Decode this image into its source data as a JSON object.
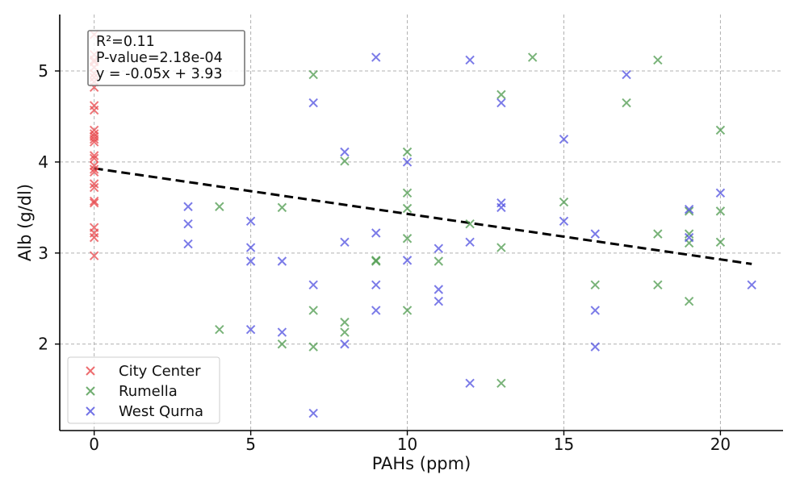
{
  "chart_data": {
    "type": "scatter",
    "xlabel": "PAHs (ppm)",
    "ylabel": "Alb (g/dl)",
    "xlim": [
      -1.1,
      22
    ],
    "ylim": [
      1.05,
      5.62
    ],
    "xticks": [
      0,
      5,
      10,
      15,
      20
    ],
    "yticks": [
      2,
      3,
      4,
      5
    ],
    "grid": true,
    "legend_position": "bottom-left",
    "stats_box": {
      "r2": "R²=0.11",
      "pvalue": "P-value=2.18e-04",
      "equation": "y = -0.05x + 3.93"
    },
    "regression": {
      "slope": -0.05,
      "intercept": 3.93,
      "x_range": [
        0,
        21
      ],
      "style": "dashed",
      "color": "#000000"
    },
    "series": [
      {
        "name": "City Center",
        "color": "#e8474b",
        "points": [
          [
            0,
            5.4
          ],
          [
            0,
            5.18
          ],
          [
            0,
            5.12
          ],
          [
            0,
            5.1
          ],
          [
            0,
            5.04
          ],
          [
            0,
            4.97
          ],
          [
            0,
            4.93
          ],
          [
            0,
            4.88
          ],
          [
            0,
            4.82
          ],
          [
            0,
            4.62
          ],
          [
            0,
            4.57
          ],
          [
            0,
            4.35
          ],
          [
            0,
            4.31
          ],
          [
            0,
            4.28
          ],
          [
            0,
            4.25
          ],
          [
            0,
            4.22
          ],
          [
            0,
            4.07
          ],
          [
            0,
            4.04
          ],
          [
            0,
            3.96
          ],
          [
            0,
            3.92
          ],
          [
            0,
            3.89
          ],
          [
            0,
            3.76
          ],
          [
            0,
            3.72
          ],
          [
            0,
            3.57
          ],
          [
            0,
            3.55
          ],
          [
            0,
            3.28
          ],
          [
            0,
            3.22
          ],
          [
            0,
            3.17
          ],
          [
            0,
            2.97
          ]
        ]
      },
      {
        "name": "Rumella",
        "color": "#4c9a4c",
        "points": [
          [
            4,
            3.51
          ],
          [
            4,
            2.16
          ],
          [
            6,
            3.5
          ],
          [
            6,
            2.0
          ],
          [
            7,
            4.96
          ],
          [
            7,
            2.37
          ],
          [
            7,
            1.97
          ],
          [
            8,
            4.01
          ],
          [
            8,
            2.24
          ],
          [
            8,
            2.13
          ],
          [
            9,
            2.92
          ],
          [
            9,
            2.91
          ],
          [
            10,
            4.11
          ],
          [
            10,
            3.66
          ],
          [
            10,
            3.49
          ],
          [
            10,
            3.16
          ],
          [
            10,
            2.37
          ],
          [
            11,
            2.91
          ],
          [
            12,
            3.32
          ],
          [
            13,
            4.74
          ],
          [
            13,
            3.06
          ],
          [
            13,
            1.57
          ],
          [
            14,
            5.15
          ],
          [
            15,
            3.56
          ],
          [
            16,
            2.65
          ],
          [
            17,
            4.65
          ],
          [
            18,
            5.12
          ],
          [
            18,
            3.21
          ],
          [
            18,
            2.65
          ],
          [
            19,
            3.46
          ],
          [
            19,
            3.21
          ],
          [
            19,
            3.11
          ],
          [
            19,
            2.47
          ],
          [
            20,
            4.35
          ],
          [
            20,
            3.46
          ],
          [
            20,
            3.12
          ]
        ]
      },
      {
        "name": "West Qurna",
        "color": "#4f4fe0",
        "points": [
          [
            3,
            3.51
          ],
          [
            3,
            3.32
          ],
          [
            3,
            3.1
          ],
          [
            5,
            3.35
          ],
          [
            5,
            3.06
          ],
          [
            5,
            2.91
          ],
          [
            5,
            2.16
          ],
          [
            6,
            2.91
          ],
          [
            6,
            2.13
          ],
          [
            7,
            4.65
          ],
          [
            7,
            2.65
          ],
          [
            7,
            1.24
          ],
          [
            8,
            4.11
          ],
          [
            8,
            3.12
          ],
          [
            8,
            2.0
          ],
          [
            9,
            5.15
          ],
          [
            9,
            3.22
          ],
          [
            9,
            2.65
          ],
          [
            9,
            2.37
          ],
          [
            10,
            4.0
          ],
          [
            10,
            2.92
          ],
          [
            11,
            3.05
          ],
          [
            11,
            2.6
          ],
          [
            11,
            2.47
          ],
          [
            12,
            5.12
          ],
          [
            12,
            3.12
          ],
          [
            12,
            1.57
          ],
          [
            13,
            4.65
          ],
          [
            13,
            3.55
          ],
          [
            13,
            3.5
          ],
          [
            15,
            4.25
          ],
          [
            15,
            3.35
          ],
          [
            16,
            3.21
          ],
          [
            16,
            2.37
          ],
          [
            16,
            1.97
          ],
          [
            17,
            4.96
          ],
          [
            19,
            3.48
          ],
          [
            19,
            3.17
          ],
          [
            20,
            3.66
          ],
          [
            21,
            2.65
          ]
        ]
      }
    ]
  }
}
